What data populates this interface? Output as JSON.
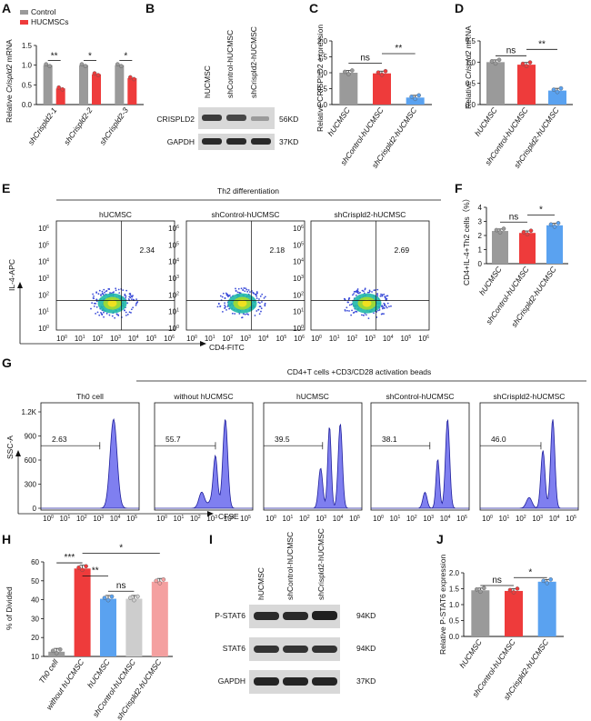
{
  "figure": {
    "colors": {
      "gray": "#9a9a9a",
      "red": "#ee3b3b",
      "blue": "#5aa2f0",
      "lightgray": "#cdcdcd",
      "pink": "#f4a0a0",
      "flow_fill": "#7f7ff0",
      "flow_line": "#1f1f9c",
      "blot_bg": "#d8d8d8",
      "blot_band": "#2a2a2a"
    },
    "panels": {
      "A": "A",
      "B": "B",
      "C": "C",
      "D": "D",
      "E": "E",
      "F": "F",
      "G": "G",
      "H": "H",
      "I": "I",
      "J": "J"
    },
    "A": {
      "legend": [
        "Control",
        "HUCMSCs"
      ],
      "ylabel_prefix": "Relative ",
      "ylabel_gene": "Crispld2",
      "ylabel_suffix": " mRNA",
      "groups": [
        "shCrispld2-1",
        "shCrispld2-2",
        "shCrispld2-3"
      ],
      "sig": [
        "**",
        "*",
        "*"
      ],
      "yticks": [
        "0.0",
        "0.5",
        "1.0",
        "1.5"
      ]
    },
    "B": {
      "lanes": [
        "hUCMSC",
        "shControl-hUCMSC",
        "shCrispld2-hUCMSC"
      ],
      "rows": [
        "CRISPLD2",
        "GAPDH"
      ],
      "kd": [
        "56KD",
        "37KD"
      ]
    },
    "C": {
      "ylabel": "Relative CRISPLD2 expression",
      "cats": [
        "hUCMSC",
        "shControl-hUCMSC",
        "shCrispld2-hUCMSC"
      ],
      "yticks": [
        "0.0",
        "0.5",
        "1.0",
        "1.5",
        "2.0"
      ],
      "sig": [
        "ns",
        "**"
      ]
    },
    "D": {
      "ylabel_prefix": "Relative ",
      "ylabel_gene": "Crispld2",
      "ylabel_suffix": " mRNA",
      "cats": [
        "hUCMSC",
        "shControl-hUCMSC",
        "shCrispld2-hUCMSC"
      ],
      "yticks": [
        "0.0",
        "0.5",
        "1.0",
        "1.5"
      ],
      "sig": [
        "ns",
        "**"
      ]
    },
    "E": {
      "header": "Th2 differentiation",
      "plots": [
        "hUCMSC",
        "shControl-hUCMSC",
        "shCrispld2-hUCMSC"
      ],
      "values": [
        "2.34",
        "2.18",
        "2.69"
      ],
      "ylabel": "IL-4-APC",
      "xlabel": "CD4-FITC",
      "tick": "10",
      "exps": [
        "0",
        "1",
        "2",
        "3",
        "4",
        "5",
        "6"
      ]
    },
    "F": {
      "ylabel": "CD4+IL-4+Th2 cells（%）",
      "cats": [
        "hUCMSC",
        "shControl-hUCMSC",
        "shCrispld2-hUCMSC"
      ],
      "yticks": [
        "0",
        "1",
        "2",
        "3",
        "4"
      ],
      "sig": [
        "ns",
        "*"
      ]
    },
    "G": {
      "header": "CD4+T cells +CD3/CD28 activation beads",
      "plots": [
        "Th0 cell",
        "without hUCMSC",
        "hUCMSC",
        "shControl-hUCMSC",
        "shCrispld2-hUCMSC"
      ],
      "values": [
        "2.63",
        "55.7",
        "39.5",
        "38.1",
        "46.0"
      ],
      "ylabel": "SSC-A",
      "xlabel": "CFSE",
      "yticks": [
        "1.2K",
        "900",
        "600",
        "300",
        "0"
      ],
      "tick": "10",
      "exps": [
        "0",
        "1",
        "2",
        "3",
        "4",
        "5"
      ]
    },
    "H": {
      "ylabel": "% of Divided",
      "cats": [
        "Th0 cell",
        "without hUCMSC",
        "hUCMSC",
        "shControl-hUCMSC",
        "shCrispld2-hUCMSC"
      ],
      "yticks": [
        "10",
        "20",
        "30",
        "40",
        "50",
        "60"
      ],
      "sig": [
        "***",
        "**",
        "ns",
        "*"
      ]
    },
    "I": {
      "lanes": [
        "hUCMSC",
        "shControl-hUCMSC",
        "shCrispld2-hUCMSC"
      ],
      "rows": [
        "P-STAT6",
        "STAT6",
        "GAPDH"
      ],
      "kd": [
        "94KD",
        "94KD",
        "37KD"
      ]
    },
    "J": {
      "ylabel": "Relative P-STAT6 expression",
      "cats": [
        "hUCMSC",
        "shControl-hUCMSC",
        "shCrispld2-hUCMSC"
      ],
      "yticks": [
        "0.0",
        "0.5",
        "1.0",
        "1.5",
        "2.0"
      ],
      "sig": [
        "ns",
        "*"
      ]
    }
  },
  "chart_data": [
    {
      "panel": "A",
      "type": "bar",
      "categories": [
        "shCrispld2-1",
        "shCrispld2-2",
        "shCrispld2-3"
      ],
      "series": [
        {
          "name": "Control",
          "values": [
            1.0,
            1.0,
            1.0
          ]
        },
        {
          "name": "HUCMSCs",
          "values": [
            0.41,
            0.77,
            0.67
          ]
        }
      ],
      "ylabel": "Relative Crispld2 mRNA",
      "ylim": [
        0,
        1.5
      ]
    },
    {
      "panel": "C",
      "type": "bar",
      "categories": [
        "hUCMSC",
        "shControl-hUCMSC",
        "shCrispld2-hUCMSC"
      ],
      "values": [
        1.0,
        0.98,
        0.22
      ],
      "ylabel": "Relative CRISPLD2 expression",
      "ylim": [
        0,
        2.0
      ]
    },
    {
      "panel": "D",
      "type": "bar",
      "categories": [
        "hUCMSC",
        "shControl-hUCMSC",
        "shCrispld2-hUCMSC"
      ],
      "values": [
        1.0,
        0.94,
        0.33
      ],
      "ylabel": "Relative Crispld2 mRNA",
      "ylim": [
        0,
        1.5
      ]
    },
    {
      "panel": "F",
      "type": "bar",
      "categories": [
        "hUCMSC",
        "shControl-hUCMSC",
        "shCrispld2-hUCMSC"
      ],
      "values": [
        2.32,
        2.18,
        2.72
      ],
      "ylabel": "CD4+IL-4+Th2 cells (%)",
      "ylim": [
        0,
        4
      ]
    },
    {
      "panel": "H",
      "type": "bar",
      "categories": [
        "Th0 cell",
        "without hUCMSC",
        "hUCMSC",
        "shControl-hUCMSC",
        "shCrispld2-hUCMSC"
      ],
      "values": [
        12.5,
        56.5,
        40.5,
        40.5,
        49.5
      ],
      "ylabel": "% of Divided",
      "ylim": [
        10,
        60
      ]
    },
    {
      "panel": "J",
      "type": "bar",
      "categories": [
        "hUCMSC",
        "shControl-hUCMSC",
        "shCrispld2-hUCMSC"
      ],
      "values": [
        1.45,
        1.43,
        1.72
      ],
      "ylabel": "Relative P-STAT6 expression",
      "ylim": [
        0,
        2.0
      ]
    }
  ]
}
